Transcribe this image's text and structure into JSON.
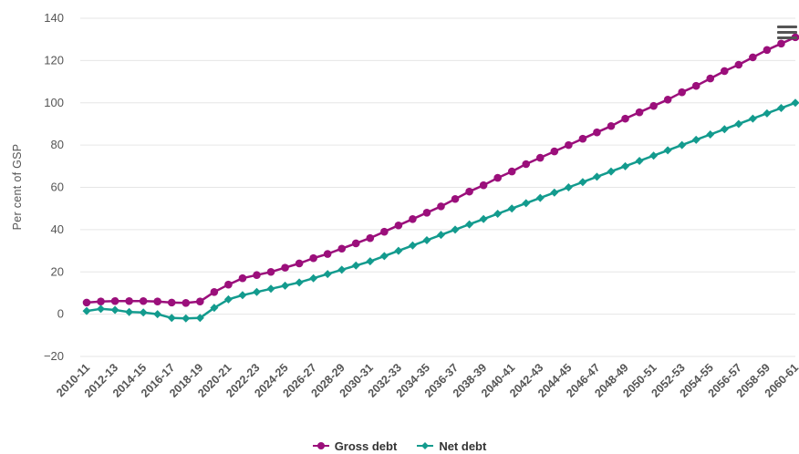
{
  "colors": {
    "gross": "#9b0f7b",
    "net": "#139b8e",
    "grid": "#e6e6e6",
    "text": "#555555"
  },
  "menu": {
    "icon": "hamburger-menu-icon"
  },
  "chart_data": {
    "type": "line",
    "title": "",
    "xlabel": "",
    "ylabel": "Per cent of GSP",
    "ylim": [
      -20,
      140
    ],
    "yticks": [
      -20,
      0,
      20,
      40,
      60,
      80,
      100,
      120,
      140
    ],
    "grid": true,
    "legend": "bottom-center",
    "x": [
      "2010-11",
      "2011-12",
      "2012-13",
      "2013-14",
      "2014-15",
      "2015-16",
      "2016-17",
      "2017-18",
      "2018-19",
      "2019-20",
      "2020-21",
      "2021-22",
      "2022-23",
      "2023-24",
      "2024-25",
      "2025-26",
      "2026-27",
      "2027-28",
      "2028-29",
      "2029-30",
      "2030-31",
      "2031-32",
      "2032-33",
      "2033-34",
      "2034-35",
      "2035-36",
      "2036-37",
      "2037-38",
      "2038-39",
      "2039-40",
      "2040-41",
      "2041-42",
      "2042-43",
      "2043-44",
      "2044-45",
      "2045-46",
      "2046-47",
      "2047-48",
      "2048-49",
      "2049-50",
      "2050-51",
      "2051-52",
      "2052-53",
      "2053-54",
      "2054-55",
      "2055-56",
      "2056-57",
      "2057-58",
      "2058-59",
      "2059-60",
      "2060-61"
    ],
    "xtick_labels": [
      "2010-11",
      "2012-13",
      "2014-15",
      "2016-17",
      "2018-19",
      "2020-21",
      "2022-23",
      "2024-25",
      "2026-27",
      "2028-29",
      "2030-31",
      "2032-33",
      "2034-35",
      "2036-37",
      "2038-39",
      "2040-41",
      "2042-43",
      "2044-45",
      "2046-47",
      "2048-49",
      "2050-51",
      "2052-53",
      "2054-55",
      "2056-57",
      "2058-59",
      "2060-61"
    ],
    "series": [
      {
        "name": "Gross debt",
        "marker": "circle",
        "values": [
          5.5,
          6,
          6.2,
          6.2,
          6.2,
          6,
          5.5,
          5.3,
          6,
          10.5,
          14,
          17,
          18.5,
          20,
          22,
          24,
          26.5,
          28.5,
          31,
          33.5,
          36,
          39,
          42,
          45,
          48,
          51,
          54.5,
          58,
          61,
          64.5,
          67.5,
          71,
          74,
          77,
          80,
          83,
          86,
          89,
          92.5,
          95.5,
          98.5,
          101.5,
          105,
          108,
          111.5,
          115,
          118,
          121.5,
          125,
          128,
          131
        ]
      },
      {
        "name": "Net debt",
        "marker": "diamond",
        "values": [
          1.5,
          2.5,
          2,
          1,
          0.8,
          0,
          -1.8,
          -2,
          -1.8,
          3,
          7,
          9,
          10.5,
          12,
          13.5,
          15,
          17,
          19,
          21,
          23,
          25,
          27.5,
          30,
          32.5,
          35,
          37.5,
          40,
          42.5,
          45,
          47.5,
          50,
          52.5,
          55,
          57.5,
          60,
          62.5,
          65,
          67.5,
          70,
          72.5,
          75,
          77.5,
          80,
          82.5,
          85,
          87.5,
          90,
          92.5,
          95,
          97.5,
          100
        ]
      }
    ]
  }
}
